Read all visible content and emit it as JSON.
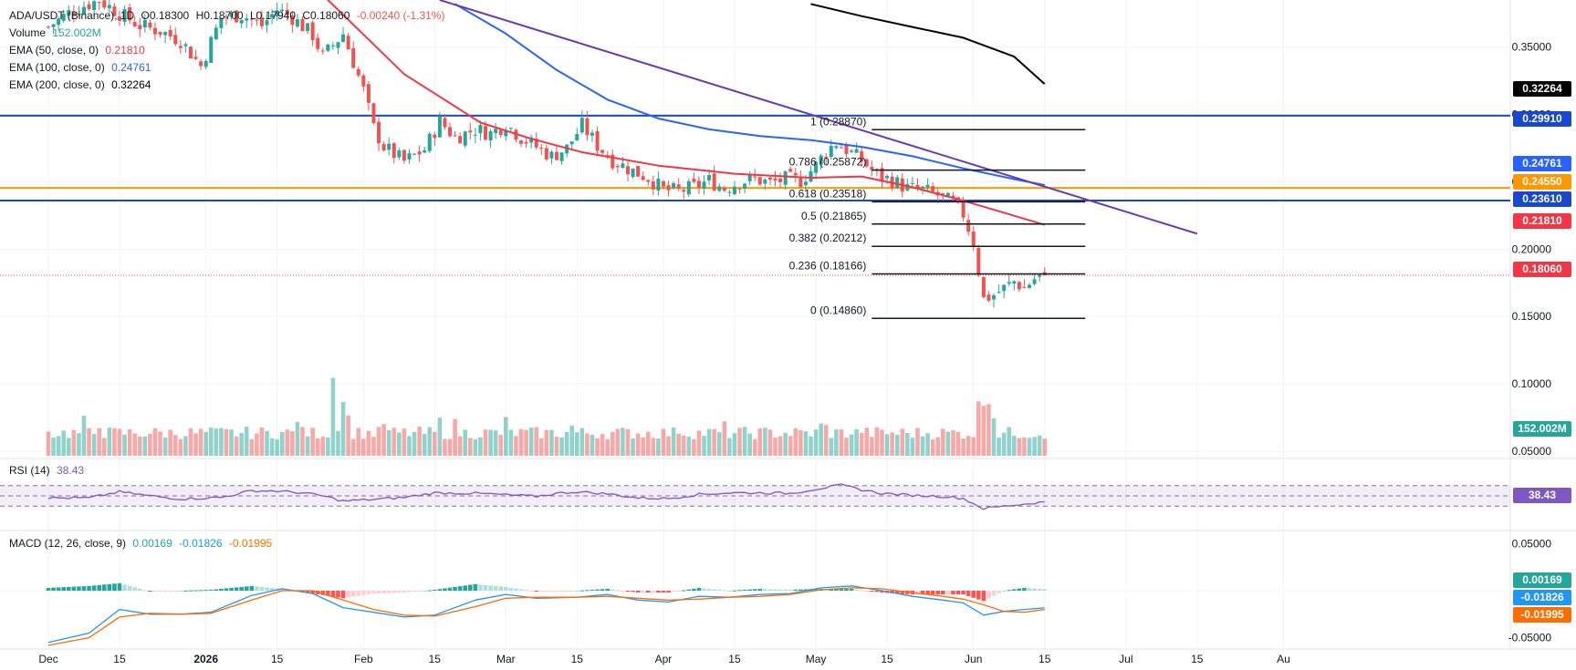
{
  "header": {
    "symbol": "ADA/USDT (Binance), 1D",
    "ohlc": [
      "O0.18300",
      "H0.18700",
      "L0.17940",
      "C0.18060",
      "-0.00240 (-1.31%)"
    ],
    "volume_label": "Volume",
    "volume_value": "152.002M",
    "ema50_label": "EMA (50, close, 0)",
    "ema50_value": "0.21810",
    "ema100_label": "EMA (100, close, 0)",
    "ema100_value": "0.24761",
    "ema200_label": "EMA (200, close, 0)",
    "ema200_value": "0.32264",
    "rsi_label": "RSI (14)",
    "rsi_value": "38.43",
    "macd_label": "MACD (12, 26, close, 9)",
    "macd_values": [
      "0.00169",
      "-0.01826",
      "-0.01995"
    ]
  },
  "colors": {
    "up": "#26a69a",
    "down": "#ef5350",
    "ema50": "#f23645",
    "ema100": "#2962ff",
    "ema200": "#000000",
    "trendline": "#673ab7",
    "support": "#1848cc",
    "orange": "#ff9800",
    "rsi": "#7e57c2",
    "macd": "#2196f3",
    "signal": "#ff6d00"
  },
  "price_tags": [
    {
      "text": "0.32264",
      "bg": "#000000"
    },
    {
      "text": "0.29910",
      "bg": "#1848cc"
    },
    {
      "text": "0.24761",
      "bg": "#2962ff"
    },
    {
      "text": "0.24550",
      "bg": "#ff9800"
    },
    {
      "text": "0.23610",
      "bg": "#1848cc"
    },
    {
      "text": "0.21810",
      "bg": "#f23645"
    },
    {
      "text": "0.18060",
      "bg": "#f23645"
    },
    {
      "text": "152.002M",
      "bg": "#26a69a"
    },
    {
      "text": "38.43",
      "bg": "#7e57c2"
    },
    {
      "text": "0.00169",
      "bg": "#26a69a"
    },
    {
      "text": "-0.01826",
      "bg": "#2196f3"
    },
    {
      "text": "-0.01995",
      "bg": "#ff6d00"
    }
  ],
  "chart_data": {
    "type": "candlestick",
    "price_axis_ticks": [
      "0.35000",
      "0.30000",
      "0.25000",
      "0.20000",
      "0.15000",
      "0.10000",
      "0.05000"
    ],
    "price_axis_values": [
      0.35,
      0.3,
      0.25,
      0.2,
      0.15,
      0.1,
      0.05
    ],
    "price_ylim": [
      0.05,
      0.385
    ],
    "macd_axis_ticks": [
      "0.05000",
      "-0.05000"
    ],
    "macd_axis_values": [
      0.05,
      -0.05
    ],
    "x_axis_labels": [
      "Dec",
      "15",
      "2026",
      "15",
      "Feb",
      "15",
      "Mar",
      "15",
      "Apr",
      "15",
      "May",
      "15",
      "Jun",
      "15",
      "Jul",
      "15",
      "Au"
    ],
    "x_axis_days": [
      0,
      14,
      31,
      45,
      62,
      76,
      90,
      104,
      121,
      135,
      151,
      165,
      182,
      196,
      212,
      226,
      243
    ],
    "x_axis_bold": [
      2
    ],
    "candle_anchors": [
      [
        0,
        0.365
      ],
      [
        5,
        0.378
      ],
      [
        10,
        0.385
      ],
      [
        14,
        0.375
      ],
      [
        18,
        0.366
      ],
      [
        22,
        0.362
      ],
      [
        26,
        0.355
      ],
      [
        30,
        0.336
      ],
      [
        34,
        0.372
      ],
      [
        38,
        0.374
      ],
      [
        42,
        0.366
      ],
      [
        45,
        0.378
      ],
      [
        48,
        0.372
      ],
      [
        52,
        0.359
      ],
      [
        54,
        0.343
      ],
      [
        58,
        0.36
      ],
      [
        62,
        0.318
      ],
      [
        64,
        0.29
      ],
      [
        66,
        0.276
      ],
      [
        70,
        0.265
      ],
      [
        74,
        0.274
      ],
      [
        77,
        0.295
      ],
      [
        80,
        0.283
      ],
      [
        84,
        0.289
      ],
      [
        87,
        0.286
      ],
      [
        90,
        0.293
      ],
      [
        93,
        0.283
      ],
      [
        96,
        0.276
      ],
      [
        99,
        0.269
      ],
      [
        102,
        0.275
      ],
      [
        105,
        0.292
      ],
      [
        108,
        0.277
      ],
      [
        111,
        0.266
      ],
      [
        115,
        0.258
      ],
      [
        118,
        0.253
      ],
      [
        121,
        0.244
      ],
      [
        124,
        0.243
      ],
      [
        127,
        0.246
      ],
      [
        130,
        0.251
      ],
      [
        133,
        0.245
      ],
      [
        136,
        0.25
      ],
      [
        139,
        0.252
      ],
      [
        142,
        0.249
      ],
      [
        145,
        0.252
      ],
      [
        148,
        0.251
      ],
      [
        151,
        0.262
      ],
      [
        153,
        0.273
      ],
      [
        155,
        0.279
      ],
      [
        157,
        0.274
      ],
      [
        160,
        0.266
      ],
      [
        163,
        0.255
      ],
      [
        166,
        0.251
      ],
      [
        169,
        0.245
      ],
      [
        172,
        0.244
      ],
      [
        175,
        0.24
      ],
      [
        178,
        0.234
      ],
      [
        180,
        0.226
      ],
      [
        182,
        0.205
      ],
      [
        184,
        0.163
      ],
      [
        186,
        0.166
      ],
      [
        188,
        0.171
      ],
      [
        190,
        0.176
      ],
      [
        192,
        0.171
      ],
      [
        194,
        0.178
      ],
      [
        196,
        0.1806
      ]
    ],
    "ema50": [
      [
        0,
        0.498
      ],
      [
        20,
        0.475
      ],
      [
        40,
        0.44
      ],
      [
        55,
        0.385
      ],
      [
        70,
        0.33
      ],
      [
        85,
        0.294
      ],
      [
        95,
        0.282
      ],
      [
        105,
        0.272
      ],
      [
        120,
        0.262
      ],
      [
        135,
        0.256
      ],
      [
        150,
        0.253
      ],
      [
        160,
        0.254
      ],
      [
        170,
        0.246
      ],
      [
        180,
        0.236
      ],
      [
        196,
        0.2181
      ]
    ],
    "ema100": [
      [
        80,
        0.382
      ],
      [
        90,
        0.36
      ],
      [
        100,
        0.333
      ],
      [
        110,
        0.311
      ],
      [
        120,
        0.297
      ],
      [
        130,
        0.289
      ],
      [
        140,
        0.284
      ],
      [
        150,
        0.281
      ],
      [
        160,
        0.276
      ],
      [
        170,
        0.269
      ],
      [
        180,
        0.26
      ],
      [
        190,
        0.252
      ],
      [
        196,
        0.24761
      ]
    ],
    "ema200": [
      [
        150,
        0.382
      ],
      [
        160,
        0.373
      ],
      [
        170,
        0.365
      ],
      [
        180,
        0.357
      ],
      [
        190,
        0.343
      ],
      [
        196,
        0.32264
      ]
    ],
    "trendline": {
      "from": [
        77,
        0.385
      ],
      "to": [
        226,
        0.2115
      ]
    },
    "horizontal_lines": [
      {
        "value": 0.2991,
        "color": "support"
      },
      {
        "value": 0.2455,
        "color": "orange"
      },
      {
        "value": 0.2361,
        "color": "support"
      }
    ],
    "last_price": 0.1806,
    "fib": {
      "x_range": [
        162,
        204
      ],
      "levels": [
        {
          "ratio": "1",
          "value": 0.2887,
          "label": "1 (0.28870)"
        },
        {
          "ratio": "0.786",
          "value": 0.25872,
          "label": "0.786 (0.25872)"
        },
        {
          "ratio": "0.618",
          "value": 0.23518,
          "label": "0.618 (0.23518)"
        },
        {
          "ratio": "0.5",
          "value": 0.21865,
          "label": "0.5 (0.21865)"
        },
        {
          "ratio": "0.382",
          "value": 0.20212,
          "label": "0.382 (0.20212)"
        },
        {
          "ratio": "0.236",
          "value": 0.18166,
          "label": "0.236 (0.18166)"
        },
        {
          "ratio": "0",
          "value": 0.1486,
          "label": "0 (0.14860)"
        }
      ]
    },
    "volume_spikes": [
      [
        7,
        1.4
      ],
      [
        10,
        1.6
      ],
      [
        49,
        1.8
      ],
      [
        56,
        3.4
      ],
      [
        57,
        1.5
      ],
      [
        58,
        2.6
      ],
      [
        59,
        1.6
      ],
      [
        66,
        1.5
      ],
      [
        77,
        1.4
      ],
      [
        80,
        1.3
      ],
      [
        90,
        1.4
      ],
      [
        103,
        1.3
      ],
      [
        124,
        1.2
      ],
      [
        133,
        1.2
      ],
      [
        152,
        1.3
      ],
      [
        153,
        1.2
      ],
      [
        160,
        1.15
      ],
      [
        183,
        2.0
      ],
      [
        184,
        2.5
      ],
      [
        185,
        3.1
      ],
      [
        186,
        1.8
      ]
    ],
    "rsi_bands": [
      70,
      50,
      30
    ],
    "rsi_anchors": [
      [
        0,
        46
      ],
      [
        8,
        46
      ],
      [
        14,
        58
      ],
      [
        20,
        50
      ],
      [
        26,
        44
      ],
      [
        34,
        47
      ],
      [
        40,
        60
      ],
      [
        44,
        60
      ],
      [
        50,
        56
      ],
      [
        54,
        50
      ],
      [
        58,
        40
      ],
      [
        64,
        43
      ],
      [
        70,
        47
      ],
      [
        76,
        56
      ],
      [
        84,
        55
      ],
      [
        90,
        52
      ],
      [
        96,
        49
      ],
      [
        100,
        55
      ],
      [
        104,
        58
      ],
      [
        110,
        54
      ],
      [
        116,
        46
      ],
      [
        122,
        45
      ],
      [
        128,
        53
      ],
      [
        134,
        56
      ],
      [
        140,
        56
      ],
      [
        146,
        55
      ],
      [
        152,
        65
      ],
      [
        156,
        71
      ],
      [
        160,
        62
      ],
      [
        164,
        55
      ],
      [
        170,
        51
      ],
      [
        176,
        49
      ],
      [
        180,
        45
      ],
      [
        184,
        25
      ],
      [
        188,
        30
      ],
      [
        192,
        34
      ],
      [
        196,
        38.43
      ]
    ],
    "macd_anchors": [
      [
        0,
        -0.055
      ],
      [
        8,
        -0.045
      ],
      [
        14,
        -0.02
      ],
      [
        20,
        -0.025
      ],
      [
        26,
        -0.025
      ],
      [
        32,
        -0.023
      ],
      [
        40,
        -0.005
      ],
      [
        46,
        0.002
      ],
      [
        52,
        -0.003
      ],
      [
        58,
        -0.018
      ],
      [
        64,
        -0.023
      ],
      [
        70,
        -0.028
      ],
      [
        76,
        -0.026
      ],
      [
        84,
        -0.01
      ],
      [
        90,
        -0.004
      ],
      [
        96,
        -0.008
      ],
      [
        104,
        -0.007
      ],
      [
        110,
        -0.004
      ],
      [
        116,
        -0.01
      ],
      [
        122,
        -0.012
      ],
      [
        128,
        -0.006
      ],
      [
        134,
        -0.007
      ],
      [
        140,
        -0.004
      ],
      [
        146,
        -0.003
      ],
      [
        152,
        0.003
      ],
      [
        158,
        0.005
      ],
      [
        164,
        0.0
      ],
      [
        170,
        -0.006
      ],
      [
        176,
        -0.01
      ],
      [
        180,
        -0.013
      ],
      [
        184,
        -0.026
      ],
      [
        188,
        -0.022
      ],
      [
        192,
        -0.02
      ],
      [
        196,
        -0.01826
      ]
    ],
    "signal_anchors": [
      [
        0,
        -0.058
      ],
      [
        8,
        -0.05
      ],
      [
        14,
        -0.028
      ],
      [
        20,
        -0.024
      ],
      [
        26,
        -0.025
      ],
      [
        32,
        -0.024
      ],
      [
        40,
        -0.01
      ],
      [
        46,
        0.0
      ],
      [
        52,
        0.0
      ],
      [
        58,
        -0.01
      ],
      [
        64,
        -0.02
      ],
      [
        70,
        -0.026
      ],
      [
        76,
        -0.027
      ],
      [
        84,
        -0.017
      ],
      [
        90,
        -0.008
      ],
      [
        96,
        -0.007
      ],
      [
        104,
        -0.007
      ],
      [
        110,
        -0.006
      ],
      [
        116,
        -0.008
      ],
      [
        122,
        -0.01
      ],
      [
        128,
        -0.009
      ],
      [
        134,
        -0.007
      ],
      [
        140,
        -0.006
      ],
      [
        146,
        -0.004
      ],
      [
        152,
        0.001
      ],
      [
        158,
        0.003
      ],
      [
        164,
        0.002
      ],
      [
        170,
        -0.002
      ],
      [
        176,
        -0.006
      ],
      [
        180,
        -0.009
      ],
      [
        184,
        -0.015
      ],
      [
        188,
        -0.022
      ],
      [
        192,
        -0.023
      ],
      [
        196,
        -0.01995
      ]
    ],
    "macd_ylim": [
      -0.062,
      0.062
    ]
  }
}
